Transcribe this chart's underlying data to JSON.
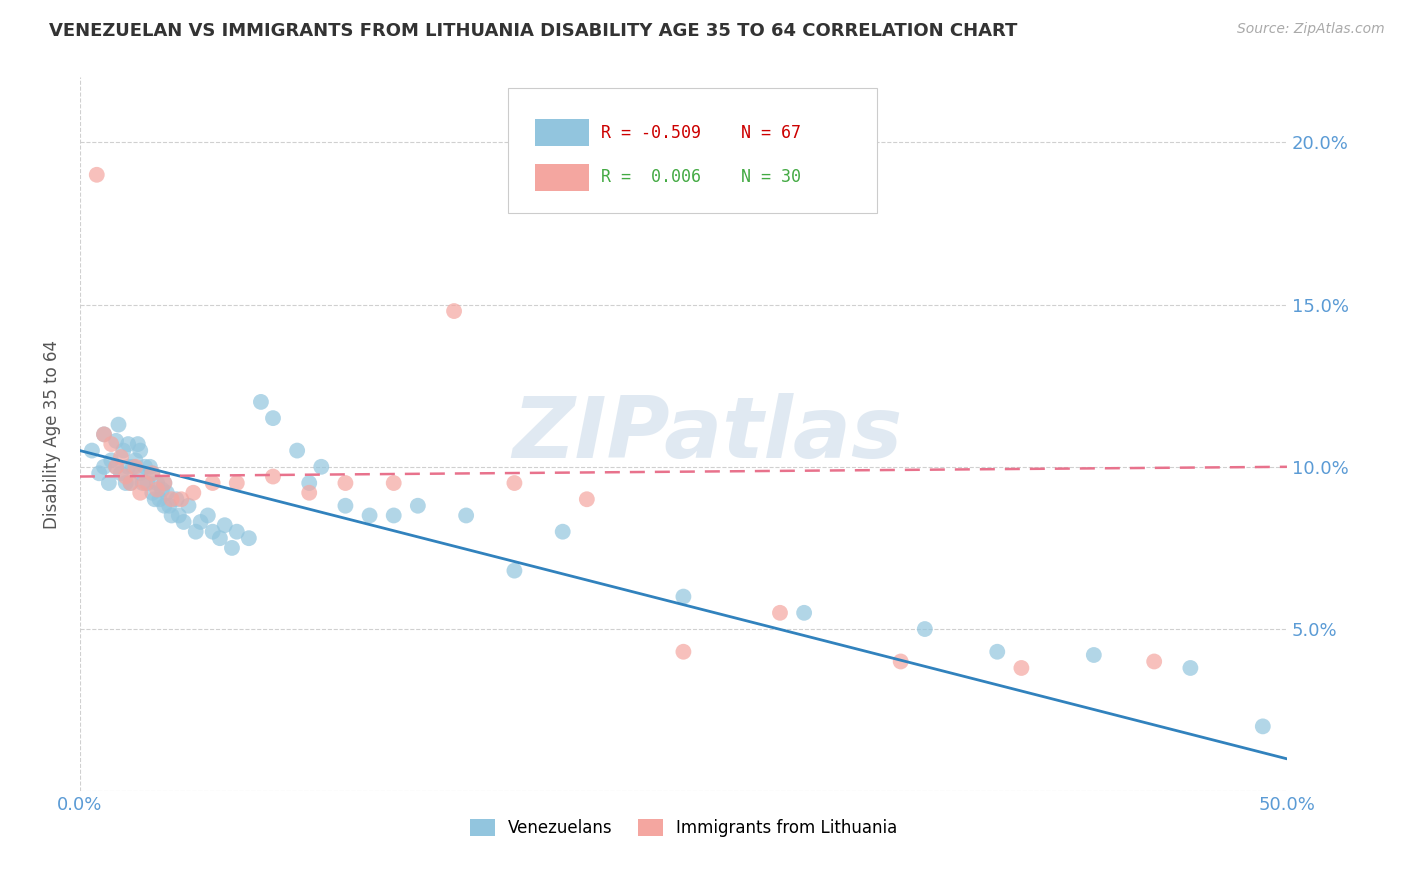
{
  "title": "VENEZUELAN VS IMMIGRANTS FROM LITHUANIA DISABILITY AGE 35 TO 64 CORRELATION CHART",
  "source": "Source: ZipAtlas.com",
  "ylabel": "Disability Age 35 to 64",
  "watermark": "ZIPatlas",
  "legend_venezuelan": "Venezuelans",
  "legend_lithuania": "Immigrants from Lithuania",
  "R_venezuelan": -0.509,
  "N_venezuelan": 67,
  "R_lithuania": 0.006,
  "N_lithuania": 30,
  "xmin": 0.0,
  "xmax": 0.5,
  "ymin": 0.0,
  "ymax": 0.22,
  "color_venezuelan": "#92c5de",
  "color_lithuania": "#f4a6a0",
  "trendline_venezuelan": "#3182bd",
  "trendline_lithuania": "#e8728c",
  "venezuelan_x": [
    0.005,
    0.008,
    0.01,
    0.01,
    0.012,
    0.013,
    0.015,
    0.015,
    0.016,
    0.017,
    0.018,
    0.019,
    0.02,
    0.02,
    0.021,
    0.022,
    0.023,
    0.024,
    0.025,
    0.025,
    0.026,
    0.027,
    0.028,
    0.029,
    0.03,
    0.03,
    0.031,
    0.032,
    0.033,
    0.034,
    0.035,
    0.035,
    0.036,
    0.037,
    0.038,
    0.04,
    0.041,
    0.043,
    0.045,
    0.048,
    0.05,
    0.053,
    0.055,
    0.058,
    0.06,
    0.063,
    0.065,
    0.07,
    0.075,
    0.08,
    0.09,
    0.095,
    0.1,
    0.11,
    0.12,
    0.13,
    0.14,
    0.16,
    0.18,
    0.2,
    0.25,
    0.3,
    0.35,
    0.38,
    0.42,
    0.46,
    0.49
  ],
  "venezuelan_y": [
    0.105,
    0.098,
    0.1,
    0.11,
    0.095,
    0.102,
    0.1,
    0.108,
    0.113,
    0.098,
    0.105,
    0.095,
    0.1,
    0.107,
    0.095,
    0.1,
    0.102,
    0.107,
    0.098,
    0.105,
    0.095,
    0.1,
    0.095,
    0.1,
    0.092,
    0.098,
    0.09,
    0.095,
    0.09,
    0.093,
    0.088,
    0.095,
    0.092,
    0.088,
    0.085,
    0.09,
    0.085,
    0.083,
    0.088,
    0.08,
    0.083,
    0.085,
    0.08,
    0.078,
    0.082,
    0.075,
    0.08,
    0.078,
    0.12,
    0.115,
    0.105,
    0.095,
    0.1,
    0.088,
    0.085,
    0.085,
    0.088,
    0.085,
    0.068,
    0.08,
    0.06,
    0.055,
    0.05,
    0.043,
    0.042,
    0.038,
    0.02
  ],
  "lithuania_x": [
    0.007,
    0.01,
    0.013,
    0.015,
    0.017,
    0.019,
    0.021,
    0.023,
    0.025,
    0.027,
    0.03,
    0.032,
    0.035,
    0.038,
    0.042,
    0.047,
    0.055,
    0.065,
    0.08,
    0.095,
    0.11,
    0.13,
    0.155,
    0.18,
    0.21,
    0.25,
    0.29,
    0.34,
    0.39,
    0.445
  ],
  "lithuania_y": [
    0.19,
    0.11,
    0.107,
    0.1,
    0.103,
    0.097,
    0.095,
    0.1,
    0.092,
    0.095,
    0.098,
    0.093,
    0.095,
    0.09,
    0.09,
    0.092,
    0.095,
    0.095,
    0.097,
    0.092,
    0.095,
    0.095,
    0.148,
    0.095,
    0.09,
    0.043,
    0.055,
    0.04,
    0.038,
    0.04
  ],
  "trendline_ven_x0": 0.0,
  "trendline_ven_y0": 0.105,
  "trendline_ven_x1": 0.5,
  "trendline_ven_y1": 0.01,
  "trendline_lit_x0": 0.0,
  "trendline_lit_y0": 0.097,
  "trendline_lit_x1": 0.5,
  "trendline_lit_y1": 0.1
}
